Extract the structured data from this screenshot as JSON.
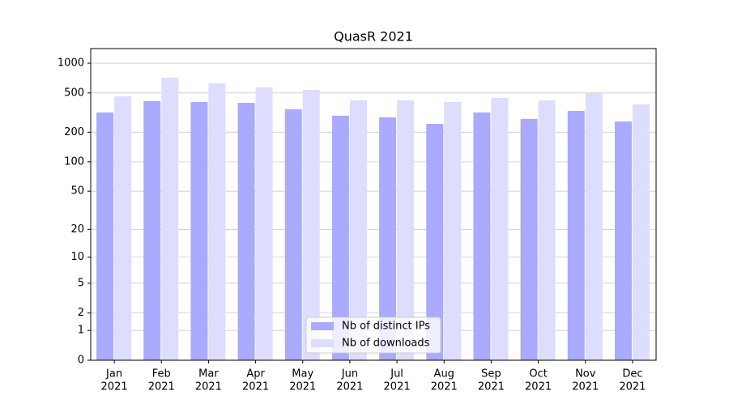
{
  "chart_data": {
    "type": "bar",
    "title": "QuasR 2021",
    "categories": [
      {
        "month": "Jan",
        "year": "2021"
      },
      {
        "month": "Feb",
        "year": "2021"
      },
      {
        "month": "Mar",
        "year": "2021"
      },
      {
        "month": "Apr",
        "year": "2021"
      },
      {
        "month": "May",
        "year": "2021"
      },
      {
        "month": "Jun",
        "year": "2021"
      },
      {
        "month": "Jul",
        "year": "2021"
      },
      {
        "month": "Aug",
        "year": "2021"
      },
      {
        "month": "Sep",
        "year": "2021"
      },
      {
        "month": "Oct",
        "year": "2021"
      },
      {
        "month": "Nov",
        "year": "2021"
      },
      {
        "month": "Dec",
        "year": "2021"
      }
    ],
    "series": [
      {
        "name": "Nb of distinct IPs",
        "color": "#aaaaff",
        "values": [
          317,
          413,
          405,
          397,
          342,
          294,
          283,
          243,
          317,
          273,
          329,
          257
        ]
      },
      {
        "name": "Nb of downloads",
        "color": "#ddddff",
        "values": [
          462,
          714,
          624,
          568,
          537,
          421,
          421,
          405,
          445,
          421,
          498,
          383
        ]
      }
    ],
    "yscale": "log1p",
    "ylim": [
      0,
      1405
    ],
    "yticks": [
      0,
      1,
      2,
      5,
      10,
      20,
      50,
      100,
      200,
      500,
      1000
    ],
    "grid": true,
    "legend": "lower center"
  }
}
